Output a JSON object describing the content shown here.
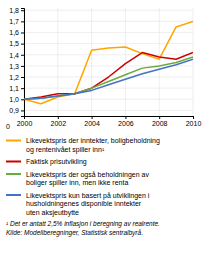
{
  "chart_data": {
    "type": "line",
    "x": [
      2000,
      2001,
      2002,
      2003,
      2004,
      2005,
      2006,
      2007,
      2008,
      2009,
      2010
    ],
    "series": [
      {
        "name": "Likevektspris der inntekter, boligbeholdning\nog rentenivået spiller inn¹",
        "color": "#FFA500",
        "values": [
          1.0,
          0.96,
          1.02,
          1.05,
          1.44,
          1.46,
          1.47,
          1.41,
          1.36,
          1.65,
          1.7
        ]
      },
      {
        "name": "Faktisk prisutvikling",
        "color": "#CC0000",
        "values": [
          1.0,
          1.02,
          1.05,
          1.05,
          1.1,
          1.2,
          1.32,
          1.42,
          1.38,
          1.36,
          1.42
        ]
      },
      {
        "name": "Likevektspris der også beholdningen av\nboliger spiller inn, men ikke renta",
        "color": "#6AAB3E",
        "values": [
          1.0,
          1.01,
          1.03,
          1.05,
          1.1,
          1.16,
          1.22,
          1.28,
          1.3,
          1.33,
          1.38
        ]
      },
      {
        "name": "Likevektspris kun basert på utviklingen i\nhusholdningenes disponible inntekter\nuten aksjeutbytte",
        "color": "#4472C4",
        "values": [
          1.0,
          1.01,
          1.03,
          1.05,
          1.08,
          1.13,
          1.18,
          1.23,
          1.27,
          1.31,
          1.36
        ]
      }
    ],
    "xlim": [
      2000,
      2010
    ],
    "xticks": [
      2000,
      2002,
      2004,
      2006,
      2008,
      2010
    ],
    "ylim": [
      0.85,
      1.82
    ],
    "yticks": [
      {
        "value": 0.9,
        "label": "0,9"
      },
      {
        "value": 1.0,
        "label": "1,0"
      },
      {
        "value": 1.1,
        "label": "1,1"
      },
      {
        "value": 1.2,
        "label": "1,2"
      },
      {
        "value": 1.3,
        "label": "1,3"
      },
      {
        "value": 1.4,
        "label": "1,4"
      },
      {
        "value": 1.5,
        "label": "1,5"
      },
      {
        "value": 1.6,
        "label": "1,6"
      },
      {
        "value": 1.7,
        "label": "1,7"
      },
      {
        "value": 1.8,
        "label": "1,8"
      }
    ],
    "grid": true,
    "legend": "bottom",
    "annotations": [
      "0"
    ],
    "footnotes": [
      "¹ Det er antatt 2,5% inflasjon i beregning av realrente.",
      "Kilde: Modellberegninger, Statistisk sentralbyrå."
    ]
  }
}
